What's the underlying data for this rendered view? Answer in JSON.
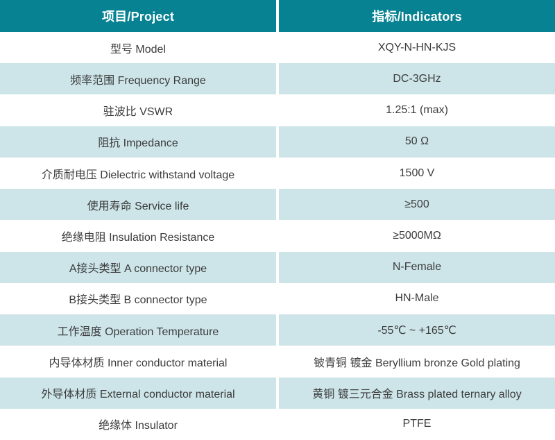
{
  "table": {
    "header": {
      "project": "项目/Project",
      "indicators": "指标/Indicators"
    },
    "rows": [
      {
        "project": "型号 Model",
        "indicator": "XQY-N-HN-KJS"
      },
      {
        "project": "频率范围 Frequency Range",
        "indicator": "DC-3GHz"
      },
      {
        "project": "驻波比 VSWR",
        "indicator": "1.25:1 (max)"
      },
      {
        "project": "阻抗 Impedance",
        "indicator": "50 Ω"
      },
      {
        "project": "介质耐电压 Dielectric withstand voltage",
        "indicator": "1500 V"
      },
      {
        "project": "使用寿命 Service life",
        "indicator": "≥500"
      },
      {
        "project": "绝缘电阻 Insulation Resistance",
        "indicator": "≥5000MΩ"
      },
      {
        "project": "A接头类型 A connector type",
        "indicator": "N-Female"
      },
      {
        "project": "B接头类型 B connector type",
        "indicator": "HN-Male"
      },
      {
        "project": "工作温度 Operation Temperature",
        "indicator": "-55℃ ~ +165℃"
      },
      {
        "project": "内导体材质 Inner conductor material",
        "indicator": "铍青铜 镀金 Beryllium bronze Gold plating"
      },
      {
        "project": "外导体材质 External conductor material",
        "indicator": "黄铜 镀三元合金 Brass plated ternary alloy"
      },
      {
        "project": "绝缘体 Insulator",
        "indicator": "PTFE"
      }
    ]
  },
  "colors": {
    "header_bg": "#068292",
    "header_text": "#ffffff",
    "row_alt_bg": "#cde5e9",
    "body_text": "#3c3c3c",
    "divider": "#ffffff"
  }
}
